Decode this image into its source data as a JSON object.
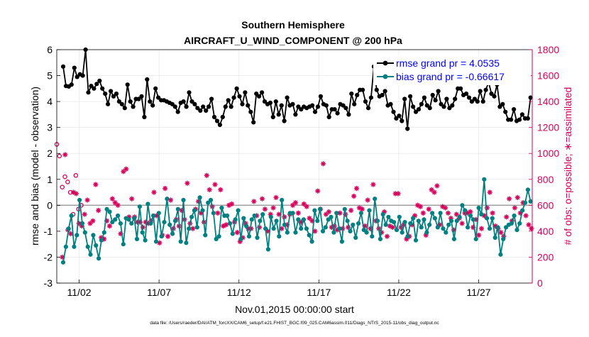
{
  "chart_data": {
    "type": "line",
    "title": "Southern Hemisphere",
    "subtitle": "AIRCRAFT_U_WIND_COMPONENT @ 200 hPa",
    "xlabel": "Nov.01,2015 00:00:00 start",
    "ylabel_left": "rmse and bias (model - observation)",
    "ylabel_right": "# of obs: o=possible; ∗=assimilated",
    "footnote": "data file: /Users/raeder/DAI/ATM_forcXX/CAM6_setup/f.e21.FHIST_BGC.f09_025.CAM6assim.011/Diags_NTrS_2015-11/obs_diag_output.nc",
    "xlim": [
      0.6,
      30.35
    ],
    "ylim_left": [
      -3,
      6
    ],
    "ylim_right": [
      0,
      1800
    ],
    "x_ticks": [
      2,
      7,
      12,
      17,
      22,
      27
    ],
    "x_tick_labels": [
      "11/02",
      "11/07",
      "11/12",
      "11/17",
      "11/22",
      "11/27"
    ],
    "y_ticks_left": [
      -3,
      -2,
      -1,
      0,
      1,
      2,
      3,
      4,
      5,
      6
    ],
    "y_ticks_right": [
      0,
      200,
      400,
      600,
      800,
      1000,
      1200,
      1400,
      1600,
      1800
    ],
    "zero_line": 0,
    "colors": {
      "rmse": "#000000",
      "bias": "#008080",
      "obs": "#d6005a",
      "zero": "#999999"
    },
    "legend": {
      "position": "top-right",
      "entries": [
        "rmse grand pr = 4.0535",
        "bias grand pr = -0.66617"
      ]
    },
    "series": [
      {
        "name": "rmse",
        "axis": "left",
        "values": [
          5.35,
          4.6,
          4.58,
          4.65,
          5.3,
          4.95,
          5.05,
          5.0,
          6.0,
          4.35,
          4.6,
          4.5,
          4.68,
          4.8,
          4.5,
          4.3,
          3.9,
          4.4,
          4.2,
          4.3,
          4.0,
          3.9,
          3.75,
          4.65,
          4.0,
          3.8,
          4.1,
          4.1,
          4.2,
          3.4,
          4.85,
          4.0,
          3.85,
          4.5,
          4.15,
          4.05,
          4.05,
          4.0,
          3.95,
          3.9,
          3.8,
          3.6,
          3.95,
          4.0,
          3.8,
          4.35,
          4.0,
          3.9,
          3.75,
          3.65,
          3.8,
          3.65,
          3.8,
          4.1,
          3.4,
          3.25,
          3.1,
          3.4,
          3.8,
          4.05,
          3.8,
          4.15,
          4.5,
          4.2,
          3.9,
          4.35,
          3.85,
          3.6,
          3.2,
          4.3,
          4.2,
          4.35,
          4.0,
          3.9,
          3.95,
          3.4,
          4.0,
          3.5,
          3.85,
          3.25,
          4.15,
          3.85,
          3.9,
          3.5,
          3.8,
          3.7,
          3.8,
          3.75,
          3.8,
          3.85,
          3.6,
          3.8,
          4.2,
          3.9,
          3.85,
          3.4,
          3.7,
          3.7,
          3.55,
          3.9,
          3.85,
          3.75,
          3.5,
          4.3,
          3.9,
          4.25,
          4.45,
          4.45,
          4.0,
          3.75,
          4.15,
          5.35,
          4.45,
          4.2,
          4.25,
          4.4,
          3.85,
          3.9,
          3.6,
          3.35,
          3.45,
          3.25,
          4.1,
          2.95,
          4.2,
          3.8,
          3.6,
          3.7,
          3.9,
          4.15,
          3.85,
          3.75,
          4.25,
          4.05,
          4.4,
          3.9,
          3.8,
          4.1,
          3.75,
          3.85,
          4.1,
          4.5,
          4.5,
          4.25,
          4.3,
          4.15,
          4.0,
          4.1,
          4.0,
          4.4,
          4.0,
          4.45,
          4.75,
          4.3,
          4.2,
          4.65,
          3.8,
          3.9,
          3.6,
          3.3,
          3.3,
          3.7,
          3.25,
          3.3,
          3.5,
          3.35,
          3.35,
          4.15
        ]
      },
      {
        "name": "bias",
        "axis": "left",
        "values": [
          -2.2,
          -1.6,
          -0.9,
          -0.4,
          -1.6,
          -1.15,
          0.2,
          -0.7,
          -1.05,
          -1.6,
          -1.9,
          -1.15,
          -1.55,
          -2.05,
          -1.35,
          -1.05,
          -0.15,
          -0.25,
          -0.65,
          -0.55,
          -0.4,
          -0.7,
          -1.5,
          -0.5,
          -0.55,
          -0.7,
          -0.5,
          -1.3,
          -0.05,
          -1.05,
          -1.35,
          0.05,
          -0.7,
          -0.4,
          -1.4,
          -0.3,
          -1.2,
          -0.65,
          0.25,
          -0.75,
          -1.1,
          -0.6,
          -0.15,
          -1.4,
          0.2,
          -1.45,
          -0.9,
          -0.45,
          -0.2,
          -0.85,
          0.3,
          -0.2,
          -1.15,
          0.1,
          0.2,
          -0.3,
          -1.3,
          -1.2,
          -0.1,
          -0.4,
          -0.4,
          -0.7,
          -1.1,
          -0.55,
          -0.2,
          -1.3,
          -0.5,
          -0.8,
          -1.2,
          -0.55,
          -0.4,
          -1.25,
          -0.6,
          -0.35,
          -0.9,
          -1.7,
          -0.45,
          -0.9,
          -0.6,
          -1.2,
          0.2,
          -0.75,
          -1.05,
          -0.3,
          -0.3,
          -1.05,
          -0.55,
          -0.9,
          -0.55,
          -0.9,
          -1.15,
          -1.4,
          -0.2,
          -0.6,
          -0.15,
          -1.0,
          -0.85,
          -0.55,
          -0.45,
          -1.05,
          -0.3,
          -0.9,
          -1.4,
          -0.15,
          -0.6,
          -1.0,
          -0.75,
          -1.25,
          -0.7,
          -0.3,
          -0.95,
          -1.05,
          -0.2,
          -1.2,
          0.25,
          -0.6,
          -1.3,
          -0.35,
          -0.75,
          -0.45,
          -0.6,
          -0.65,
          -0.95,
          -0.45,
          -1.05,
          -0.65,
          -1.2,
          -0.7,
          -0.5,
          -1.35,
          -0.6,
          -0.85,
          -0.55,
          -1.05,
          -0.75,
          -0.3,
          -0.5,
          -0.85,
          -0.3,
          -0.9,
          -1.05,
          -0.75,
          -0.6,
          -1.3,
          -0.6,
          -0.45,
          0.0,
          -0.2,
          -0.85,
          -0.4,
          -0.55,
          -1.3,
          -0.1,
          -0.35,
          1.0,
          -0.5,
          -0.9,
          -0.5,
          -1.25,
          -0.85,
          -1.9,
          -1.3,
          -0.85,
          -0.75,
          -0.7,
          -0.4,
          -0.95,
          -0.7,
          -0.2,
          0.1,
          0.6,
          0.15
        ]
      },
      {
        "name": "obs_possible",
        "axis": "right",
        "marker": "o",
        "values": [
          1070,
          980,
          740,
          820,
          780,
          700,
          530,
          830,
          570,
          600
        ]
      },
      {
        "name": "obs_assimilated",
        "axis": "right",
        "marker": "*",
        "values": [
          200,
          990,
          410,
          380,
          700,
          690,
          460,
          440,
          530,
          640,
          460,
          480,
          760,
          560,
          350,
          340,
          480,
          440,
          650,
          620,
          600,
          380,
          860,
          880,
          510,
          650,
          510,
          470,
          470,
          430,
          470,
          460,
          480,
          700,
          520,
          310,
          370,
          730,
          360,
          640,
          420,
          490,
          440,
          560,
          490,
          770,
          460,
          420,
          570,
          630,
          540,
          470,
          830,
          720,
          590,
          760,
          540,
          720,
          440,
          450,
          600,
          610,
          470,
          390,
          320,
          350,
          460,
          420,
          420,
          630,
          520,
          430,
          650,
          570,
          400,
          530,
          580,
          660,
          530,
          420,
          510,
          450,
          530,
          600,
          620,
          540,
          470,
          610,
          590,
          500,
          480,
          400,
          710,
          570,
          920,
          530,
          550,
          430,
          440,
          410,
          540,
          420,
          530,
          430,
          560,
          670,
          730,
          580,
          570,
          440,
          640,
          420,
          760,
          480,
          420,
          390,
          550,
          360,
          440,
          430,
          690,
          690,
          430,
          450,
          340,
          360,
          450,
          520,
          600,
          590,
          540,
          370,
          570,
          720,
          700,
          750,
          450,
          590,
          580,
          540,
          500,
          410,
          530,
          500,
          460,
          540,
          540,
          550,
          430,
          490,
          370,
          420,
          520,
          580,
          700,
          540,
          440,
          420,
          390,
          360,
          510,
          650,
          480,
          580,
          660,
          540,
          620,
          520,
          450,
          420
        ]
      }
    ]
  }
}
